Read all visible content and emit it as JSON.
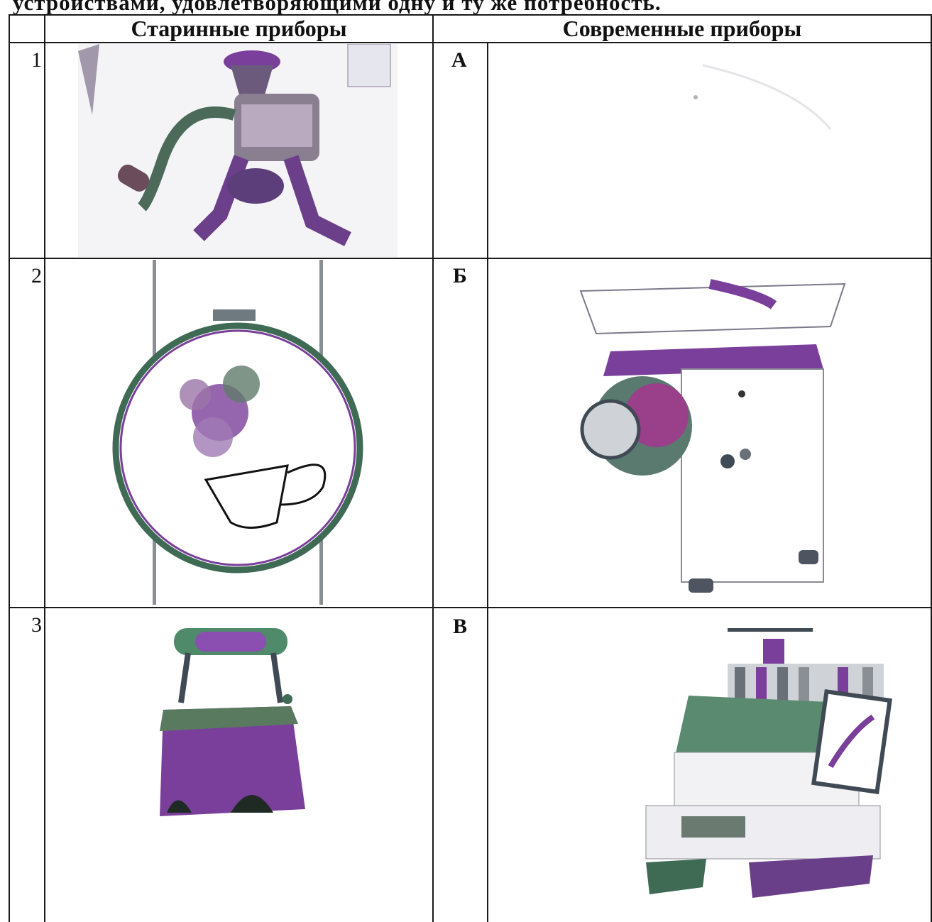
{
  "heading": "устройствами, удовлетворяющими одну и ту же потребность.",
  "header": {
    "col_old": "Старинные приборы",
    "col_new": "Современные приборы"
  },
  "rows": [
    {
      "num": "1",
      "letter": "А",
      "old_device": "meat-grinder-manual",
      "new_device": "blank"
    },
    {
      "num": "2",
      "letter": "Б",
      "old_device": "embroidery-hoop",
      "new_device": "electric-meat-grinder"
    },
    {
      "num": "3",
      "letter": "В",
      "old_device": "coal-iron",
      "new_device": "embroidery-machine"
    }
  ],
  "colors": {
    "ink": "#111111",
    "purple": "#7a3f9a",
    "green": "#3f6b55",
    "grey": "#8a8f95"
  }
}
